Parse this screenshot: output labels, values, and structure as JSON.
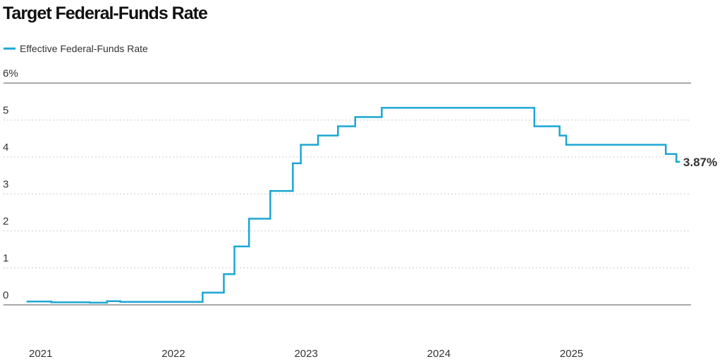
{
  "chart_data": {
    "type": "step-line",
    "title": "Target Federal-Funds Rate",
    "x": [
      2020.9,
      2021.08,
      2021.37,
      2021.5,
      2021.6,
      2021.75,
      2021.9,
      2022.22,
      2022.38,
      2022.46,
      2022.57,
      2022.73,
      2022.9,
      2022.96,
      2023.09,
      2023.24,
      2023.37,
      2023.57,
      2024.72,
      2024.91,
      2024.96,
      2025.71,
      2025.79,
      2025.81
    ],
    "series": [
      {
        "name": "Effective Federal-Funds Rate",
        "color": "#1ba6d4",
        "values": [
          0.09,
          0.07,
          0.06,
          0.1,
          0.08,
          0.08,
          0.08,
          0.33,
          0.83,
          1.58,
          2.33,
          3.08,
          3.83,
          4.33,
          4.58,
          4.83,
          5.08,
          5.33,
          4.83,
          4.58,
          4.33,
          4.08,
          3.87,
          3.87
        ],
        "value_labels": [
          null,
          null,
          null,
          null,
          null,
          null,
          null,
          null,
          null,
          null,
          null,
          null,
          null,
          null,
          null,
          null,
          null,
          null,
          null,
          null,
          null,
          null,
          null,
          "3.87%"
        ]
      }
    ],
    "xlim": [
      2020.72,
      2025.9
    ],
    "xticks": [
      2021,
      2022,
      2023,
      2024,
      2025
    ],
    "ylim": [
      0,
      6
    ],
    "yticks": [
      0,
      1,
      2,
      3,
      4,
      5,
      {
        "value": 6,
        "label": "6%"
      }
    ],
    "grid": true
  }
}
